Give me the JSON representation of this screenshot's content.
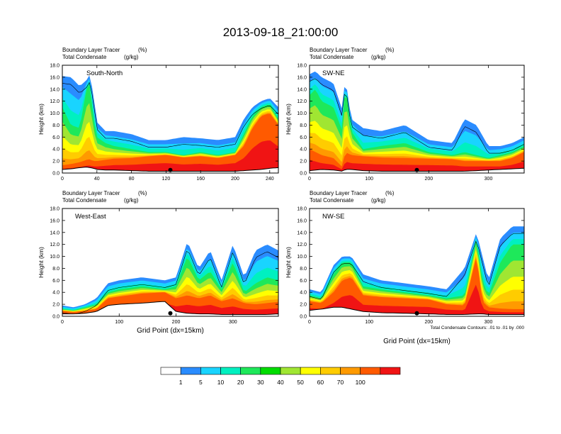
{
  "figure": {
    "title": "2013-09-18_21:00:00",
    "footnote": "Total Condensate Contours: .01 to .01 by .000"
  },
  "palette": {
    "levels": [
      "1",
      "5",
      "10",
      "20",
      "30",
      "40",
      "50",
      "60",
      "70",
      "100"
    ],
    "colors": [
      "#ffffff",
      "#2a8cff",
      "#19d4ff",
      "#00f0c0",
      "#1ee85a",
      "#00dd00",
      "#a0e632",
      "#ffff00",
      "#ffcc00",
      "#ff9a00",
      "#ff5a00",
      "#f01414"
    ]
  },
  "chart_data": [
    {
      "type": "heatmap",
      "label": "South-North",
      "subtitle_left_1": "Boundary Layer Tracer",
      "subtitle_right_1": "(%)",
      "subtitle_left_2": "Total Condensate",
      "subtitle_right_2": "(g/kg)",
      "ylabel": "Height (km)",
      "xlabel": "",
      "xlim": [
        0,
        250
      ],
      "ylim": [
        0,
        18
      ],
      "xticks": [
        0,
        40,
        80,
        120,
        160,
        200,
        240
      ],
      "yticks": [
        0.0,
        2.0,
        4.0,
        6.0,
        8.0,
        10.0,
        12.0,
        14.0,
        16.0,
        18.0
      ],
      "marker_x": 125,
      "profiles": {
        "x": [
          0,
          10,
          20,
          28,
          32,
          36,
          40,
          50,
          60,
          80,
          100,
          120,
          140,
          160,
          180,
          200,
          210,
          220,
          230,
          240,
          250
        ],
        "top": [
          16.2,
          16.0,
          14.5,
          15.5,
          16.5,
          13.0,
          8.5,
          7.0,
          7.0,
          6.5,
          5.5,
          5.5,
          6.0,
          5.8,
          5.5,
          6.0,
          9.0,
          11.0,
          12.0,
          12.5,
          11.0
        ],
        "mid": [
          11.0,
          8.0,
          7.5,
          14.0,
          15.0,
          9.0,
          6.0,
          5.0,
          4.5,
          4.0,
          3.5,
          3.5,
          3.0,
          3.5,
          3.0,
          3.5,
          6.5,
          9.5,
          11.0,
          11.5,
          9.0
        ],
        "red": [
          1.3,
          1.5,
          1.8,
          2.2,
          2.3,
          2.0,
          2.0,
          2.2,
          2.4,
          2.5,
          2.8,
          3.0,
          2.6,
          2.8,
          2.5,
          3.0,
          4.5,
          7.5,
          9.5,
          10.0,
          8.0
        ],
        "terrain": [
          0.6,
          0.7,
          0.9,
          1.0,
          0.9,
          0.8,
          0.6,
          0.5,
          0.5,
          0.4,
          0.3,
          0.3,
          0.3,
          0.3,
          0.3,
          0.3,
          0.4,
          0.5,
          0.6,
          0.8,
          0.9
        ]
      }
    },
    {
      "type": "heatmap",
      "label": "SW-NE",
      "subtitle_left_1": "Boundary Layer Tracer",
      "subtitle_right_1": "(%)",
      "subtitle_left_2": "Total Condensate",
      "subtitle_right_2": "(g/kg)",
      "ylabel": "Height (km)",
      "xlabel": "",
      "xlim": [
        0,
        360
      ],
      "ylim": [
        0,
        18
      ],
      "xticks": [
        0,
        100,
        200,
        300
      ],
      "yticks": [
        0.0,
        2.0,
        4.0,
        6.0,
        8.0,
        10.0,
        12.0,
        14.0,
        16.0,
        18.0
      ],
      "marker_x": 180,
      "profiles": {
        "x": [
          0,
          10,
          20,
          40,
          55,
          60,
          70,
          90,
          120,
          160,
          200,
          240,
          260,
          280,
          300,
          320,
          340,
          360
        ],
        "top": [
          16.5,
          17.0,
          16.0,
          15.0,
          10.5,
          16.0,
          9.0,
          7.5,
          7.0,
          8.0,
          5.5,
          5.0,
          9.0,
          8.0,
          4.5,
          4.5,
          5.0,
          6.0
        ],
        "mid": [
          13.0,
          14.0,
          12.0,
          11.0,
          7.0,
          15.0,
          7.0,
          4.0,
          4.5,
          5.0,
          3.5,
          3.0,
          3.5,
          3.0,
          2.5,
          3.0,
          3.5,
          4.5
        ],
        "red": [
          4.0,
          3.5,
          3.0,
          2.5,
          1.0,
          3.5,
          3.0,
          2.8,
          2.6,
          2.5,
          2.4,
          2.3,
          2.0,
          2.0,
          2.0,
          2.0,
          2.5,
          3.5
        ],
        "terrain": [
          0.4,
          0.5,
          0.6,
          0.5,
          0.3,
          0.6,
          0.6,
          0.4,
          0.3,
          0.3,
          0.3,
          0.3,
          0.3,
          0.4,
          0.5,
          0.6,
          0.7,
          0.8
        ]
      }
    },
    {
      "type": "heatmap",
      "label": "West-East",
      "subtitle_left_1": "Boundary Layer Tracer",
      "subtitle_right_1": "(%)",
      "subtitle_left_2": "Total Condensate",
      "subtitle_right_2": "(g/kg)",
      "ylabel": "Height (km)",
      "xlabel": "Grid Point (dx=15km)",
      "xlim": [
        0,
        380
      ],
      "ylim": [
        0,
        18
      ],
      "xticks": [
        0,
        100,
        200,
        300
      ],
      "yticks": [
        0.0,
        2.0,
        4.0,
        6.0,
        8.0,
        10.0,
        12.0,
        14.0,
        16.0,
        18.0
      ],
      "marker_x": 190,
      "profiles": {
        "x": [
          0,
          20,
          40,
          60,
          80,
          100,
          140,
          180,
          200,
          220,
          240,
          260,
          280,
          300,
          320,
          340,
          360,
          380
        ],
        "top": [
          1.8,
          1.5,
          2.0,
          3.0,
          5.5,
          6.0,
          6.5,
          6.0,
          6.5,
          12.5,
          8.0,
          11.0,
          6.0,
          12.0,
          6.5,
          11.0,
          12.0,
          11.0
        ],
        "mid": [
          1.2,
          1.0,
          1.5,
          2.0,
          4.0,
          4.5,
          5.0,
          4.5,
          5.0,
          10.0,
          6.0,
          7.5,
          4.5,
          9.0,
          4.0,
          5.5,
          6.5,
          6.0
        ],
        "red": [
          0.9,
          0.7,
          0.9,
          1.2,
          3.0,
          3.3,
          3.8,
          4.0,
          3.0,
          3.5,
          3.0,
          3.5,
          2.5,
          3.0,
          2.2,
          2.0,
          2.2,
          2.4
        ],
        "terrain": [
          0.4,
          0.4,
          0.5,
          0.8,
          1.8,
          2.0,
          2.2,
          2.5,
          0.8,
          0.5,
          0.4,
          0.4,
          0.3,
          0.3,
          0.3,
          0.3,
          0.3,
          0.4
        ]
      }
    },
    {
      "type": "heatmap",
      "label": "NW-SE",
      "subtitle_left_1": "Boundary Layer Tracer",
      "subtitle_right_1": "(%)",
      "subtitle_left_2": "Total Condensate",
      "subtitle_right_2": "(g/kg)",
      "ylabel": "Height (km)",
      "xlabel": "Grid Point (dx=15km)",
      "xlim": [
        0,
        360
      ],
      "ylim": [
        0,
        18
      ],
      "xticks": [
        0,
        100,
        200,
        300
      ],
      "yticks": [
        0.0,
        2.0,
        4.0,
        6.0,
        8.0,
        10.0,
        12.0,
        14.0,
        16.0,
        18.0
      ],
      "marker_x": 180,
      "profiles": {
        "x": [
          0,
          20,
          40,
          55,
          70,
          90,
          120,
          160,
          200,
          230,
          260,
          280,
          290,
          300,
          320,
          340,
          360
        ],
        "top": [
          4.5,
          4.0,
          8.5,
          10.0,
          10.0,
          7.0,
          6.0,
          5.5,
          5.0,
          4.5,
          8.0,
          14.0,
          10.0,
          6.0,
          13.0,
          15.0,
          15.0
        ],
        "mid": [
          3.5,
          3.0,
          7.0,
          9.0,
          9.0,
          5.0,
          4.5,
          4.0,
          3.5,
          3.0,
          3.5,
          13.0,
          6.0,
          3.5,
          9.0,
          12.0,
          12.0
        ],
        "red": [
          2.5,
          2.2,
          4.0,
          6.0,
          6.5,
          3.5,
          3.2,
          3.0,
          2.8,
          2.0,
          1.8,
          10.0,
          2.5,
          1.5,
          1.3,
          1.2,
          1.2
        ],
        "terrain": [
          1.0,
          1.2,
          1.5,
          1.5,
          1.2,
          0.8,
          0.6,
          0.5,
          0.4,
          0.3,
          0.3,
          0.4,
          0.4,
          0.3,
          0.3,
          0.3,
          0.3
        ]
      }
    }
  ]
}
